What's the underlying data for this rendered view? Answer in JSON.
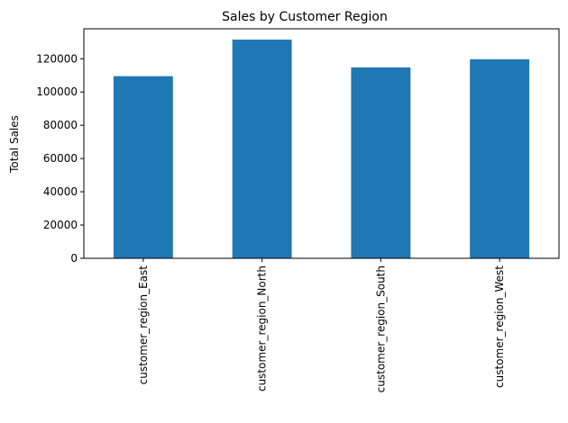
{
  "chart_data": {
    "type": "bar",
    "title": "Sales by Customer Region",
    "xlabel": "",
    "ylabel": "Total Sales",
    "categories": [
      "customer_region_East",
      "customer_region_North",
      "customer_region_South",
      "customer_region_West"
    ],
    "values": [
      109500,
      131500,
      114800,
      119700
    ],
    "ylim": [
      0,
      138000
    ],
    "yticks": [
      0,
      20000,
      40000,
      60000,
      80000,
      100000,
      120000
    ],
    "bar_color": "#1f77b4",
    "grid": false,
    "legend": false
  }
}
